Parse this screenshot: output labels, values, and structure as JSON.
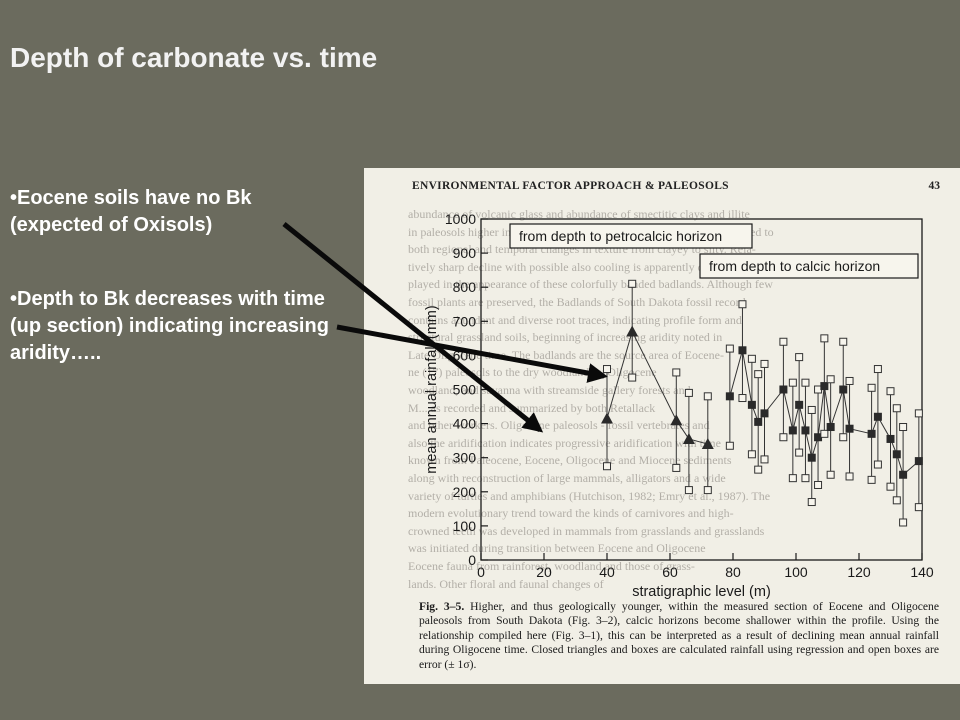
{
  "slide": {
    "title": "Depth of carbonate vs. time",
    "bullets": [
      "•Eocene soils have no Bk (expected of Oxisols)",
      "•Depth to Bk decreases with time (up section) indicating increasing aridity….."
    ]
  },
  "book_page": {
    "header": "ENVIRONMENTAL FACTOR APPROACH & PALEOSOLS",
    "page_number": "43",
    "caption_label": "Fig. 3–5.",
    "caption": "Higher, and thus geologically younger, within the measured section of Eocene and Oligocene paleosols from South Dakota (Fig. 3–2), calcic horizons become shallower within the profile. Using the relationship compiled here (Fig. 3–1), this can be interpreted as a result of declining mean annual rainfall during Oligocene time. Closed triangles and boxes are calculated rainfall using regression and open boxes are error (± 1σ).",
    "bleed_lines": [
      "abundance of volcanic glass and abundance of smectitic clays and illite",
      "in paleosols higher in the section. These changes in clay can be compared to",
      "both regional and temporal changes in texture from clayey to silty. Rela-",
      "tively sharp decline with possible also cooling is apparently dis-",
      "played in the appearance of these colorfully banded badlands. Although few",
      "fossil plants are preserved, the Badlands of South Dakota fossil record",
      "contains abundant and diverse root traces, indicating profile form and",
      "structural grassland soils, beginning of increasing aridity noted in",
      "Late Oligocene time. The badlands are the source area of Eocene-",
      "ne (17) paleosols to the dry woodland by Oligocene",
      "woodland, and savanna with streamside gallery forests and",
      "M... as recorded and summarized by both Retallack",
      "and other workers. Oligocene paleosols - fossil vertebrates and",
      "also the aridification indicates progressive aridification with time",
      "known from Paleocene, Eocene, Oligocene and Miocene sediments",
      "along with reconstruction of large mammals, alligators and a wide",
      "variety of turtles and amphibians (Hutchison, 1982; Emry et al., 1987). The",
      "modern evolutionary trend toward the kinds of carnivores and high-",
      "crowned teeth was developed in mammals from grasslands and grasslands",
      "was initiated during transition between Eocene and Oligocene",
      "Eocene fauna from rainforest, woodland and those of grass-",
      "lands. Other floral and faunal changes of"
    ]
  },
  "chart_data": {
    "type": "scatter",
    "xlabel": "stratigraphic level (m)",
    "ylabel": "mean annual rainfall (mm)",
    "xlim": [
      0,
      140
    ],
    "ylim": [
      0,
      1000
    ],
    "xticks": [
      0,
      20,
      40,
      60,
      80,
      100,
      120,
      140
    ],
    "yticks": [
      0,
      100,
      200,
      300,
      400,
      500,
      600,
      700,
      800,
      900,
      1000
    ],
    "annotations": [
      "from depth to petrocalcic horizon",
      "from depth to calcic horizon"
    ],
    "series": [
      {
        "name": "from depth to petrocalcic horizon",
        "marker": "filled-triangle",
        "points": [
          {
            "x": 40,
            "y": 415,
            "lo": 275,
            "hi": 560
          },
          {
            "x": 48,
            "y": 670,
            "lo": 535,
            "hi": 810
          },
          {
            "x": 62,
            "y": 410,
            "lo": 270,
            "hi": 550
          },
          {
            "x": 66,
            "y": 355,
            "lo": 205,
            "hi": 490
          },
          {
            "x": 72,
            "y": 340,
            "lo": 205,
            "hi": 480
          }
        ]
      },
      {
        "name": "from depth to calcic horizon",
        "marker": "filled-square",
        "points": [
          {
            "x": 79,
            "y": 480,
            "lo": 335,
            "hi": 620
          },
          {
            "x": 83,
            "y": 615,
            "lo": 475,
            "hi": 750
          },
          {
            "x": 86,
            "y": 455,
            "lo": 310,
            "hi": 590
          },
          {
            "x": 88,
            "y": 405,
            "lo": 265,
            "hi": 545
          },
          {
            "x": 90,
            "y": 430,
            "lo": 295,
            "hi": 575
          },
          {
            "x": 96,
            "y": 500,
            "lo": 360,
            "hi": 640
          },
          {
            "x": 99,
            "y": 380,
            "lo": 240,
            "hi": 520
          },
          {
            "x": 101,
            "y": 455,
            "lo": 315,
            "hi": 595
          },
          {
            "x": 103,
            "y": 380,
            "lo": 240,
            "hi": 520
          },
          {
            "x": 105,
            "y": 300,
            "lo": 170,
            "hi": 440
          },
          {
            "x": 107,
            "y": 360,
            "lo": 220,
            "hi": 500
          },
          {
            "x": 109,
            "y": 510,
            "lo": 370,
            "hi": 650
          },
          {
            "x": 111,
            "y": 390,
            "lo": 250,
            "hi": 530
          },
          {
            "x": 115,
            "y": 500,
            "lo": 360,
            "hi": 640
          },
          {
            "x": 117,
            "y": 385,
            "lo": 245,
            "hi": 525
          },
          {
            "x": 124,
            "y": 370,
            "lo": 235,
            "hi": 505
          },
          {
            "x": 126,
            "y": 420,
            "lo": 280,
            "hi": 560
          },
          {
            "x": 130,
            "y": 355,
            "lo": 215,
            "hi": 495
          },
          {
            "x": 132,
            "y": 310,
            "lo": 175,
            "hi": 445
          },
          {
            "x": 134,
            "y": 250,
            "lo": 110,
            "hi": 390
          },
          {
            "x": 139,
            "y": 290,
            "lo": 155,
            "hi": 430
          }
        ]
      }
    ],
    "grid": false,
    "legend": "annotation boxes inside plot, upper area"
  },
  "colors": {
    "slide_background": "#6b6b5e",
    "page_background": "#f1efe6",
    "ink": "#1a1a1a",
    "arrow": "#0a0a0a"
  }
}
